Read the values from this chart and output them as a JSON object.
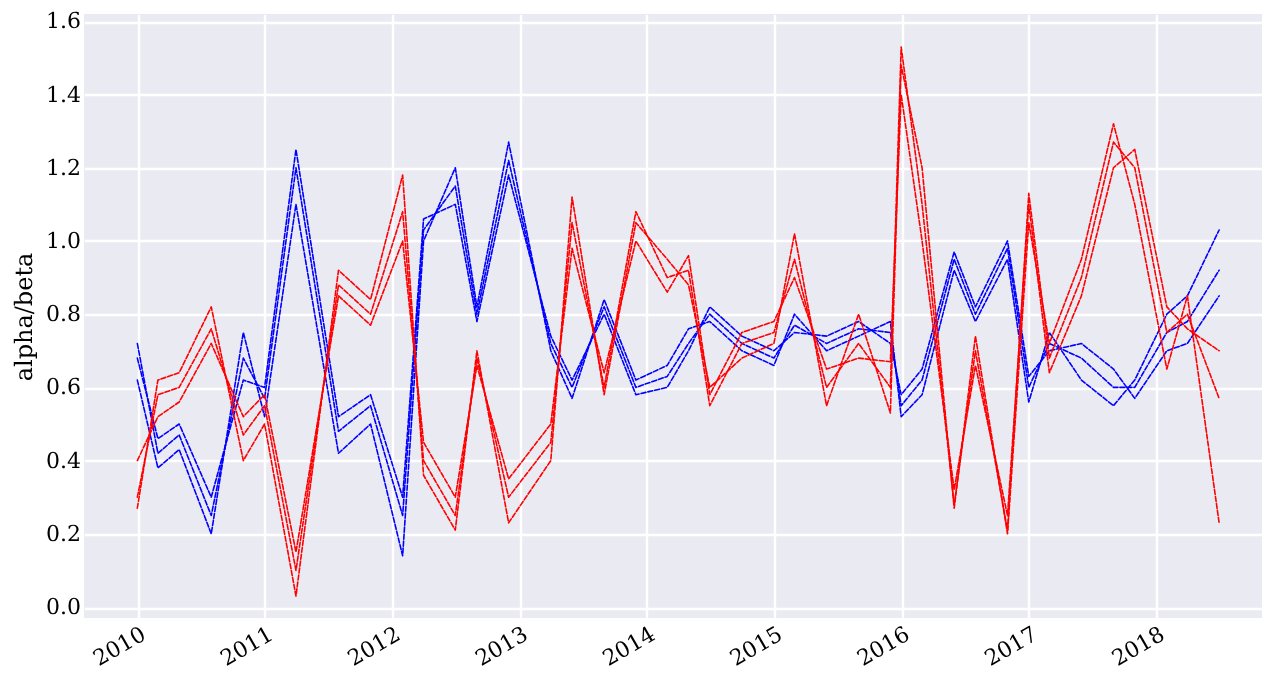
{
  "chart_data": {
    "type": "line",
    "ylabel": "alpha/beta",
    "x": [
      "2010-01",
      "2010-03",
      "2010-05",
      "2010-08",
      "2010-11",
      "2011-01",
      "2011-04",
      "2011-08",
      "2011-11",
      "2012-02",
      "2012-04",
      "2012-07",
      "2012-09",
      "2012-12",
      "2013-04",
      "2013-06",
      "2013-09",
      "2013-12",
      "2014-03",
      "2014-05",
      "2014-07",
      "2014-10",
      "2015-01",
      "2015-03",
      "2015-06",
      "2015-09",
      "2015-12",
      "2016-01",
      "2016-03",
      "2016-06",
      "2016-08",
      "2016-11",
      "2017-01",
      "2017-03",
      "2017-06",
      "2017-09",
      "2017-11",
      "2018-02",
      "2018-04",
      "2018-07"
    ],
    "series": [
      {
        "color": "#0000ff",
        "values": [
          0.72,
          0.42,
          0.47,
          0.25,
          0.68,
          0.57,
          1.2,
          0.48,
          0.55,
          0.25,
          1.03,
          1.15,
          0.8,
          1.22,
          0.72,
          0.6,
          0.82,
          0.6,
          0.63,
          0.72,
          0.8,
          0.72,
          0.68,
          0.77,
          0.72,
          0.76,
          0.75,
          0.55,
          0.62,
          0.95,
          0.8,
          0.98,
          0.6,
          0.72,
          0.68,
          0.6,
          0.6,
          0.75,
          0.78,
          0.92
        ]
      },
      {
        "color": "#0000ff",
        "values": [
          0.62,
          0.38,
          0.43,
          0.2,
          0.75,
          0.52,
          1.1,
          0.42,
          0.5,
          0.14,
          1.0,
          1.2,
          0.82,
          1.27,
          0.7,
          0.57,
          0.84,
          0.62,
          0.66,
          0.76,
          0.78,
          0.7,
          0.66,
          0.8,
          0.7,
          0.74,
          0.78,
          0.52,
          0.58,
          0.92,
          0.78,
          0.95,
          0.56,
          0.75,
          0.62,
          0.55,
          0.62,
          0.8,
          0.85,
          1.03
        ]
      },
      {
        "color": "#0000ff",
        "values": [
          0.68,
          0.46,
          0.5,
          0.3,
          0.62,
          0.6,
          1.25,
          0.52,
          0.58,
          0.3,
          1.06,
          1.1,
          0.78,
          1.18,
          0.74,
          0.62,
          0.8,
          0.58,
          0.6,
          0.7,
          0.82,
          0.74,
          0.7,
          0.75,
          0.74,
          0.78,
          0.72,
          0.58,
          0.65,
          0.97,
          0.82,
          1.0,
          0.63,
          0.7,
          0.72,
          0.65,
          0.57,
          0.7,
          0.72,
          0.85
        ]
      },
      {
        "color": "#ff0000",
        "values": [
          0.3,
          0.58,
          0.6,
          0.76,
          0.47,
          0.55,
          0.1,
          0.88,
          0.8,
          1.08,
          0.4,
          0.25,
          0.68,
          0.3,
          0.45,
          1.05,
          0.6,
          1.08,
          0.9,
          0.92,
          0.55,
          0.72,
          0.75,
          0.95,
          0.6,
          0.72,
          0.6,
          1.53,
          1.1,
          0.28,
          0.7,
          0.21,
          1.13,
          0.68,
          0.9,
          1.27,
          1.2,
          0.75,
          0.8,
          0.57
        ]
      },
      {
        "color": "#ff0000",
        "values": [
          0.27,
          0.62,
          0.64,
          0.82,
          0.4,
          0.5,
          0.03,
          0.92,
          0.84,
          1.18,
          0.36,
          0.21,
          0.7,
          0.23,
          0.4,
          1.12,
          0.58,
          1.05,
          0.95,
          0.88,
          0.6,
          0.68,
          0.72,
          1.02,
          0.55,
          0.8,
          0.53,
          1.48,
          1.2,
          0.27,
          0.74,
          0.2,
          1.05,
          0.72,
          0.95,
          1.32,
          1.1,
          0.65,
          0.85,
          0.23
        ]
      },
      {
        "color": "#ff0000",
        "values": [
          0.4,
          0.52,
          0.56,
          0.72,
          0.52,
          0.58,
          0.15,
          0.85,
          0.77,
          1.0,
          0.45,
          0.3,
          0.66,
          0.35,
          0.5,
          0.98,
          0.64,
          1.0,
          0.86,
          0.96,
          0.58,
          0.75,
          0.78,
          0.9,
          0.65,
          0.68,
          0.67,
          1.4,
          1.0,
          0.32,
          0.66,
          0.25,
          1.1,
          0.64,
          0.85,
          1.2,
          1.25,
          0.82,
          0.76,
          0.7
        ]
      }
    ],
    "xlim": [
      "2009-08",
      "2018-11"
    ],
    "xticks": [
      "2010",
      "2011",
      "2012",
      "2013",
      "2014",
      "2015",
      "2016",
      "2017",
      "2018"
    ],
    "ylim": [
      -0.03,
      1.62
    ],
    "yticks": [
      {
        "value": 0,
        "label": "0.0"
      },
      0.2,
      0.4,
      0.6,
      0.8,
      {
        "value": 1,
        "label": "1.0"
      },
      1.2,
      1.4,
      1.6
    ],
    "grid": true,
    "legend": false,
    "marker": "none",
    "line_style": "dashed"
  }
}
